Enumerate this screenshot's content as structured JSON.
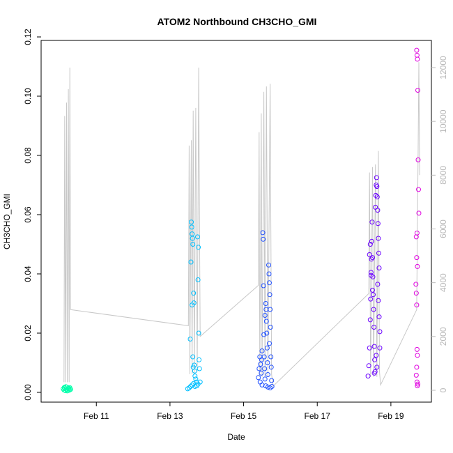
{
  "chart_data": {
    "type": "scatter",
    "title": "ATOM2 Northbound CH3CHO_GMI",
    "xlabel": "Date",
    "ylabel": "CH3CHO_GMI",
    "x_ticks": [
      "Feb 11",
      "Feb 13",
      "Feb 15",
      "Feb 17",
      "Feb 19"
    ],
    "x_tick_days": [
      11,
      13,
      15,
      17,
      19
    ],
    "xlim_days": [
      9.5,
      20.1
    ],
    "y_ticks": [
      "0.00",
      "0.02",
      "0.04",
      "0.06",
      "0.08",
      "0.10",
      "0.12"
    ],
    "ylim": [
      0,
      0.12
    ],
    "y2_ticks": [
      "0",
      "2000",
      "4000",
      "6000",
      "8000",
      "10000",
      "12000"
    ],
    "y2lim": [
      0,
      13500
    ],
    "y2_color": "#b8b8b8",
    "grid": false,
    "altitude_trace": [
      [
        10.12,
        300
      ],
      [
        10.14,
        10200
      ],
      [
        10.16,
        300
      ],
      [
        10.19,
        10700
      ],
      [
        10.21,
        300
      ],
      [
        10.24,
        11200
      ],
      [
        10.26,
        300
      ],
      [
        10.28,
        12000
      ],
      [
        10.3,
        3000
      ],
      [
        13.5,
        2400
      ],
      [
        13.52,
        9100
      ],
      [
        13.54,
        600
      ],
      [
        13.58,
        9300
      ],
      [
        13.6,
        600
      ],
      [
        13.63,
        10400
      ],
      [
        13.66,
        600
      ],
      [
        13.7,
        10500
      ],
      [
        13.74,
        700
      ],
      [
        13.78,
        12000
      ],
      [
        13.82,
        2000
      ],
      [
        15.4,
        3900
      ],
      [
        15.42,
        9600
      ],
      [
        15.44,
        500
      ],
      [
        15.48,
        10300
      ],
      [
        15.5,
        500
      ],
      [
        15.55,
        11100
      ],
      [
        15.58,
        500
      ],
      [
        15.62,
        11300
      ],
      [
        15.66,
        500
      ],
      [
        15.72,
        11400
      ],
      [
        15.76,
        600
      ],
      [
        15.8,
        150
      ],
      [
        18.4,
        3600
      ],
      [
        18.42,
        8100
      ],
      [
        18.45,
        500
      ],
      [
        18.5,
        8300
      ],
      [
        18.53,
        500
      ],
      [
        18.58,
        8400
      ],
      [
        18.62,
        500
      ],
      [
        18.66,
        8900
      ],
      [
        18.69,
        700
      ],
      [
        18.72,
        200
      ],
      [
        19.7,
        3000
      ],
      [
        19.72,
        6000
      ],
      [
        19.74,
        9000
      ],
      [
        19.76,
        12200
      ],
      [
        19.78,
        8000
      ]
    ],
    "series": [
      {
        "color": "#00ffaa",
        "points": [
          [
            10.1,
            0.0012
          ],
          [
            10.12,
            0.0008
          ],
          [
            10.14,
            0.0015
          ],
          [
            10.16,
            0.0006
          ],
          [
            10.18,
            0.0011
          ],
          [
            10.2,
            0.0018
          ],
          [
            10.22,
            0.0009
          ],
          [
            10.24,
            0.0013
          ],
          [
            10.26,
            0.0007
          ],
          [
            10.28,
            0.0016
          ],
          [
            10.3,
            0.001
          ],
          [
            10.13,
            0.0017
          ],
          [
            10.17,
            0.0019
          ],
          [
            10.21,
            0.0005
          ],
          [
            10.25,
            0.0014
          ],
          [
            10.29,
            0.0012
          ]
        ]
      },
      {
        "color": "#00bfff",
        "points": [
          [
            13.48,
            0.0012
          ],
          [
            13.52,
            0.0015
          ],
          [
            13.56,
            0.002
          ],
          [
            13.6,
            0.0025
          ],
          [
            13.64,
            0.003
          ],
          [
            13.68,
            0.002
          ],
          [
            13.72,
            0.0035
          ],
          [
            13.76,
            0.0028
          ],
          [
            13.55,
            0.018
          ],
          [
            13.57,
            0.044
          ],
          [
            13.58,
            0.0575
          ],
          [
            13.59,
            0.0558
          ],
          [
            13.6,
            0.0535
          ],
          [
            13.61,
            0.052
          ],
          [
            13.62,
            0.05
          ],
          [
            13.6,
            0.0295
          ],
          [
            13.62,
            0.012
          ],
          [
            13.63,
            0.0085
          ],
          [
            13.64,
            0.0335
          ],
          [
            13.65,
            0.0302
          ],
          [
            13.66,
            0.0092
          ],
          [
            13.67,
            0.0072
          ],
          [
            13.68,
            0.0055
          ],
          [
            13.7,
            0.0045
          ],
          [
            13.75,
            0.0525
          ],
          [
            13.77,
            0.049
          ],
          [
            13.76,
            0.038
          ],
          [
            13.78,
            0.02
          ],
          [
            13.79,
            0.011
          ],
          [
            13.8,
            0.008
          ],
          [
            13.73,
            0.0022
          ],
          [
            13.82,
            0.0035
          ]
        ]
      },
      {
        "color": "#2050ff",
        "points": [
          [
            15.4,
            0.005
          ],
          [
            15.42,
            0.008
          ],
          [
            15.44,
            0.012
          ],
          [
            15.46,
            0.0095
          ],
          [
            15.48,
            0.0065
          ],
          [
            15.5,
            0.014
          ],
          [
            15.52,
            0.0539
          ],
          [
            15.53,
            0.0517
          ],
          [
            15.54,
            0.036
          ],
          [
            15.55,
            0.0195
          ],
          [
            15.56,
            0.012
          ],
          [
            15.57,
            0.008
          ],
          [
            15.58,
            0.0045
          ],
          [
            15.6,
            0.03
          ],
          [
            15.61,
            0.028
          ],
          [
            15.62,
            0.024
          ],
          [
            15.63,
            0.02
          ],
          [
            15.64,
            0.015
          ],
          [
            15.65,
            0.01
          ],
          [
            15.66,
            0.006
          ],
          [
            15.68,
            0.043
          ],
          [
            15.69,
            0.04
          ],
          [
            15.7,
            0.037
          ],
          [
            15.71,
            0.033
          ],
          [
            15.72,
            0.028
          ],
          [
            15.73,
            0.022
          ],
          [
            15.7,
            0.0165
          ],
          [
            15.74,
            0.012
          ],
          [
            15.75,
            0.0085
          ],
          [
            15.76,
            0.004
          ],
          [
            15.77,
            0.002
          ],
          [
            15.58,
            0.026
          ],
          [
            15.45,
            0.0035
          ],
          [
            15.5,
            0.0025
          ],
          [
            15.6,
            0.0022
          ],
          [
            15.66,
            0.0018
          ],
          [
            15.72,
            0.0015
          ],
          [
            15.49,
            0.011
          ]
        ]
      },
      {
        "color": "#6a00ff",
        "points": [
          [
            18.38,
            0.0055
          ],
          [
            18.4,
            0.009
          ],
          [
            18.42,
            0.015
          ],
          [
            18.44,
            0.0245
          ],
          [
            18.45,
            0.0315
          ],
          [
            18.46,
            0.0395
          ],
          [
            18.47,
            0.045
          ],
          [
            18.48,
            0.051
          ],
          [
            18.49,
            0.0575
          ],
          [
            18.5,
            0.0455
          ],
          [
            18.51,
            0.039
          ],
          [
            18.52,
            0.033
          ],
          [
            18.53,
            0.028
          ],
          [
            18.54,
            0.022
          ],
          [
            18.55,
            0.0155
          ],
          [
            18.56,
            0.011
          ],
          [
            18.57,
            0.007
          ],
          [
            18.58,
            0.0625
          ],
          [
            18.59,
            0.0665
          ],
          [
            18.6,
            0.07
          ],
          [
            18.61,
            0.0725
          ],
          [
            18.62,
            0.0695
          ],
          [
            18.63,
            0.066
          ],
          [
            18.64,
            0.0615
          ],
          [
            18.65,
            0.057
          ],
          [
            18.66,
            0.052
          ],
          [
            18.67,
            0.047
          ],
          [
            18.68,
            0.042
          ],
          [
            18.64,
            0.0365
          ],
          [
            18.66,
            0.031
          ],
          [
            18.68,
            0.0255
          ],
          [
            18.7,
            0.0205
          ],
          [
            18.7,
            0.015
          ],
          [
            18.42,
            0.0465
          ],
          [
            18.44,
            0.05
          ],
          [
            18.46,
            0.0405
          ],
          [
            18.5,
            0.0345
          ],
          [
            18.55,
            0.0065
          ],
          [
            18.6,
            0.0125
          ],
          [
            18.62,
            0.0085
          ]
        ]
      },
      {
        "color": "#e000e0",
        "points": [
          [
            19.7,
            0.1155
          ],
          [
            19.71,
            0.1138
          ],
          [
            19.72,
            0.1125
          ],
          [
            19.73,
            0.102
          ],
          [
            19.74,
            0.0785
          ],
          [
            19.75,
            0.0685
          ],
          [
            19.76,
            0.0605
          ],
          [
            19.71,
            0.0538
          ],
          [
            19.69,
            0.0525
          ],
          [
            19.7,
            0.0455
          ],
          [
            19.72,
            0.0425
          ],
          [
            19.68,
            0.0365
          ],
          [
            19.69,
            0.0335
          ],
          [
            19.7,
            0.0295
          ],
          [
            19.71,
            0.0145
          ],
          [
            19.72,
            0.0125
          ],
          [
            19.7,
            0.0085
          ],
          [
            19.71,
            0.0035
          ],
          [
            19.72,
            0.0022
          ],
          [
            19.73,
            0.0028
          ],
          [
            19.69,
            0.0058
          ]
        ]
      }
    ]
  }
}
